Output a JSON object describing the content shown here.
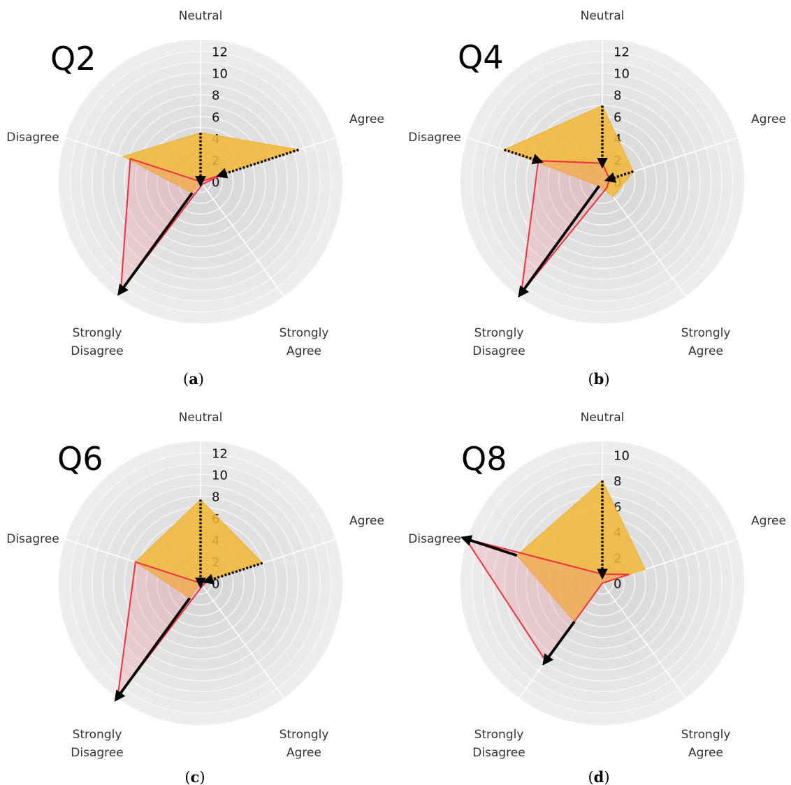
{
  "colors": {
    "background": "#ffffff",
    "ring_outer": "#ececec",
    "ring_inner": "#d2d2d2",
    "ring_line": "#f7f7f7",
    "spoke": "#ffffff",
    "before_fill": "#f2b735",
    "before_stroke": "#f0b030",
    "after_line": "#f0303c",
    "after_fill": "#f0909a",
    "arrow": "#000000"
  },
  "chart_data": [
    {
      "type": "radar",
      "title": "Q2",
      "panel": "a",
      "axes": [
        "Neutral",
        "Agree",
        "Strongly Agree",
        "Strongly Disagree",
        "Disagree"
      ],
      "axis_labels": [
        [
          "Neutral"
        ],
        [
          "Agree"
        ],
        [
          "Strongly",
          "Agree"
        ],
        [
          "Strongly",
          "Disagree"
        ],
        [
          "Disagree"
        ]
      ],
      "rlim": [
        0,
        13
      ],
      "ticks": [
        0,
        2,
        4,
        6,
        8,
        10,
        12
      ],
      "series": [
        {
          "values": [
            4.5,
            9.5,
            0,
            1.3,
            7.5
          ]
        },
        {
          "values": [
            0,
            2.0,
            0.3,
            12.5,
            6.8
          ]
        }
      ],
      "arrows": [
        {
          "axis": "Neutral",
          "from": 4.5,
          "to": 0,
          "style": "dotted"
        },
        {
          "axis": "Agree",
          "from": 9.5,
          "to": 2.0,
          "style": "dotted"
        },
        {
          "axis": "Strongly Disagree",
          "from": 1.3,
          "to": 12.5,
          "style": "solid"
        }
      ]
    },
    {
      "type": "radar",
      "title": "Q4",
      "panel": "b",
      "axes": [
        "Neutral",
        "Agree",
        "Strongly Agree",
        "Strongly Disagree",
        "Disagree"
      ],
      "axis_labels": [
        [
          "Neutral"
        ],
        [
          "Agree"
        ],
        [
          "Strongly",
          "Agree"
        ],
        [
          "Strongly",
          "Disagree"
        ],
        [
          "Disagree"
        ]
      ],
      "rlim": [
        0,
        13
      ],
      "ticks": [
        0,
        2,
        4,
        6,
        8,
        10,
        12
      ],
      "series": [
        {
          "values": [
            7.0,
            3.0,
            1.7,
            0.5,
            9.5
          ]
        },
        {
          "values": [
            1.7,
            0.7,
            0.7,
            12.7,
            6.2
          ]
        }
      ],
      "arrows": [
        {
          "axis": "Neutral",
          "from": 7.0,
          "to": 1.7,
          "style": "dotted"
        },
        {
          "axis": "Agree",
          "from": 3.0,
          "to": 0.7,
          "style": "dotted"
        },
        {
          "axis": "Disagree",
          "from": 9.5,
          "to": 6.2,
          "style": "dotted"
        },
        {
          "axis": "Strongly Disagree",
          "from": 0.5,
          "to": 12.7,
          "style": "solid"
        }
      ]
    },
    {
      "type": "radar",
      "title": "Q6",
      "panel": "c",
      "axes": [
        "Neutral",
        "Agree",
        "Strongly Agree",
        "Strongly Disagree",
        "Disagree"
      ],
      "axis_labels": [
        [
          "Neutral"
        ],
        [
          "Agree"
        ],
        [
          "Strongly",
          "Agree"
        ],
        [
          "Strongly",
          "Disagree"
        ],
        [
          "Disagree"
        ]
      ],
      "rlim": [
        0,
        13
      ],
      "ticks": [
        0,
        2,
        4,
        6,
        8,
        10,
        12
      ],
      "series": [
        {
          "values": [
            7.7,
            6.0,
            0,
            1.7,
            6.3
          ]
        },
        {
          "values": [
            0,
            0.7,
            0.3,
            13.0,
            6.3
          ]
        }
      ],
      "arrows": [
        {
          "axis": "Neutral",
          "from": 7.7,
          "to": 0,
          "style": "dotted"
        },
        {
          "axis": "Agree",
          "from": 6.0,
          "to": 0.7,
          "style": "dotted"
        },
        {
          "axis": "Strongly Disagree",
          "from": 1.7,
          "to": 13.0,
          "style": "solid"
        }
      ]
    },
    {
      "type": "radar",
      "title": "Q8",
      "panel": "d",
      "axes": [
        "Neutral",
        "Agree",
        "Strongly Agree",
        "Strongly Disagree",
        "Disagree"
      ],
      "axis_labels": [
        [
          "Neutral"
        ],
        [
          "Agree"
        ],
        [
          "Strongly",
          "Agree"
        ],
        [
          "Strongly",
          "Disagree"
        ],
        [
          "Disagree"
        ]
      ],
      "rlim": [
        0,
        11
      ],
      "ticks": [
        0,
        2,
        4,
        6,
        8,
        10
      ],
      "series": [
        {
          "values": [
            8.0,
            3.5,
            0,
            3.7,
            7.0
          ]
        },
        {
          "values": [
            0.7,
            2.2,
            0,
            7.5,
            11.2
          ]
        }
      ],
      "arrows": [
        {
          "axis": "Neutral",
          "from": 8.0,
          "to": 0.7,
          "style": "dotted"
        },
        {
          "axis": "Strongly Disagree",
          "from": 3.7,
          "to": 7.5,
          "style": "solid"
        },
        {
          "axis": "Disagree",
          "from": 7.0,
          "to": 11.2,
          "style": "solid"
        }
      ]
    }
  ]
}
